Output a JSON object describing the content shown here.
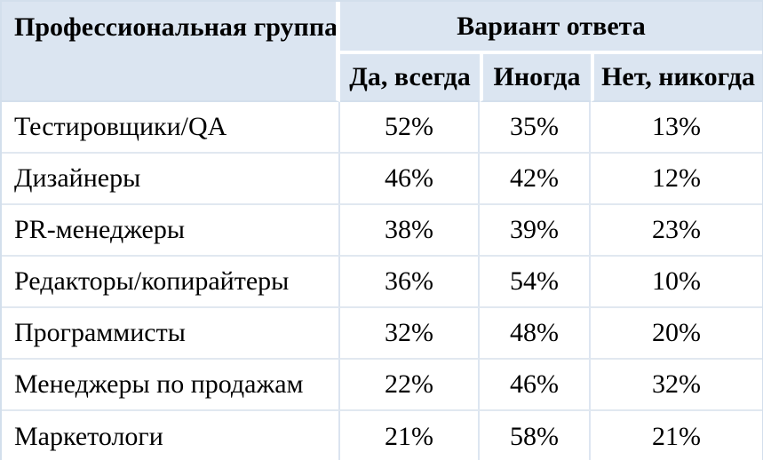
{
  "table": {
    "header": {
      "group_column": "Профессиональная группа",
      "answer_group": "Вариант ответа",
      "options": [
        "Да, всегда",
        "Иногда",
        "Нет, никогда"
      ]
    },
    "rows": [
      {
        "group": "Тестировщики/QA",
        "values": [
          "52%",
          "35%",
          "13%"
        ]
      },
      {
        "group": "Дизайнеры",
        "values": [
          "46%",
          "42%",
          "12%"
        ]
      },
      {
        "group": "PR-менеджеры",
        "values": [
          "38%",
          "39%",
          "23%"
        ]
      },
      {
        "group": "Редакторы/копирайтеры",
        "values": [
          "36%",
          "54%",
          "10%"
        ]
      },
      {
        "group": "Программисты",
        "values": [
          "32%",
          "48%",
          "20%"
        ]
      },
      {
        "group": "Менеджеры по продажам",
        "values": [
          "22%",
          "46%",
          "32%"
        ]
      },
      {
        "group": "Маркетологи",
        "values": [
          "21%",
          "58%",
          "21%"
        ]
      }
    ],
    "colors": {
      "header_bg": "#dbe5f1",
      "header_divider": "#ffffff",
      "outer_border": "#d3dfec",
      "body_border": "#dde6f1",
      "text": "#000000"
    }
  },
  "chart_data": {
    "type": "table",
    "title": "",
    "unit": "%",
    "categories": [
      "Тестировщики/QA",
      "Дизайнеры",
      "PR-менеджеры",
      "Редакторы/копирайтеры",
      "Программисты",
      "Менеджеры по продажам",
      "Маркетологи"
    ],
    "series": [
      {
        "name": "Да, всегда",
        "values": [
          52,
          46,
          38,
          36,
          32,
          22,
          21
        ]
      },
      {
        "name": "Иногда",
        "values": [
          35,
          42,
          39,
          54,
          48,
          46,
          58
        ]
      },
      {
        "name": "Нет, никогда",
        "values": [
          13,
          12,
          23,
          10,
          20,
          32,
          21
        ]
      }
    ]
  }
}
